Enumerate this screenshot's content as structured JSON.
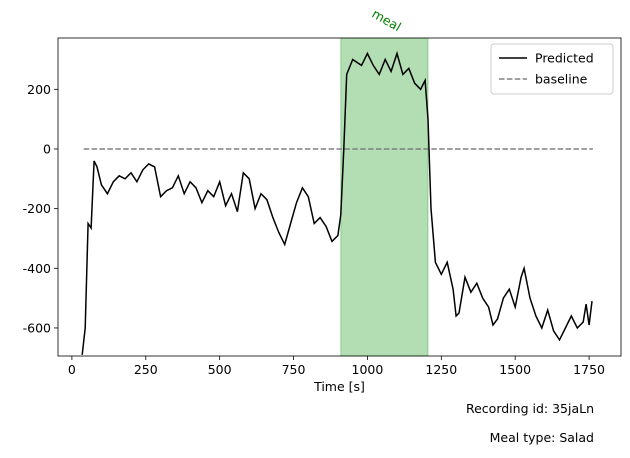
{
  "chart_data": {
    "type": "line",
    "xlabel": "Time [s]",
    "xlim": [
      -47,
      1858
    ],
    "xticks": [
      0,
      250,
      500,
      750,
      1000,
      1250,
      1500,
      1750
    ],
    "ylim": [
      -694,
      372
    ],
    "yticks": [
      -600,
      -400,
      -200,
      0,
      200
    ],
    "legend": "upper right",
    "spans": [
      {
        "label": "meal",
        "x": [
          910,
          1205
        ],
        "color": "#2ca02c"
      }
    ],
    "series": [
      {
        "name": "Predicted",
        "color": "#000000",
        "linestyle": "solid",
        "x": [
          35,
          45,
          55,
          65,
          75,
          85,
          100,
          120,
          140,
          160,
          180,
          200,
          220,
          240,
          260,
          280,
          300,
          320,
          340,
          360,
          380,
          400,
          420,
          440,
          460,
          480,
          500,
          520,
          540,
          560,
          580,
          600,
          620,
          640,
          660,
          680,
          700,
          720,
          740,
          760,
          780,
          800,
          820,
          840,
          860,
          880,
          900,
          910,
          920,
          930,
          950,
          980,
          1000,
          1020,
          1040,
          1060,
          1080,
          1100,
          1120,
          1140,
          1160,
          1180,
          1195,
          1205,
          1215,
          1230,
          1250,
          1270,
          1290,
          1300,
          1310,
          1330,
          1350,
          1370,
          1390,
          1410,
          1425,
          1440,
          1460,
          1480,
          1500,
          1520,
          1530,
          1550,
          1570,
          1590,
          1610,
          1630,
          1650,
          1670,
          1690,
          1710,
          1730,
          1740,
          1750,
          1760
        ],
        "values": [
          -690,
          -600,
          -250,
          -265,
          -40,
          -60,
          -120,
          -150,
          -110,
          -90,
          -100,
          -80,
          -110,
          -70,
          -50,
          -60,
          -160,
          -140,
          -130,
          -90,
          -150,
          -110,
          -130,
          -180,
          -140,
          -160,
          -110,
          -190,
          -150,
          -210,
          -80,
          -100,
          -200,
          -150,
          -170,
          -230,
          -280,
          -320,
          -250,
          -180,
          -130,
          -160,
          -250,
          -230,
          -260,
          -310,
          -290,
          -220,
          0,
          250,
          300,
          280,
          320,
          280,
          250,
          300,
          260,
          320,
          250,
          270,
          220,
          200,
          230,
          100,
          -200,
          -380,
          -420,
          -380,
          -470,
          -560,
          -550,
          -430,
          -480,
          -450,
          -500,
          -530,
          -590,
          -570,
          -500,
          -470,
          -530,
          -430,
          -400,
          -500,
          -560,
          -600,
          -540,
          -610,
          -640,
          -600,
          -560,
          -600,
          -580,
          -520,
          -590,
          -510
        ]
      },
      {
        "name": "baseline",
        "color": "#808080",
        "linestyle": "dashed",
        "x": [
          40,
          1763
        ],
        "values": [
          0,
          0
        ]
      }
    ],
    "annotations": [
      "Recording id: 35jaLn",
      "Meal type: Salad"
    ]
  }
}
